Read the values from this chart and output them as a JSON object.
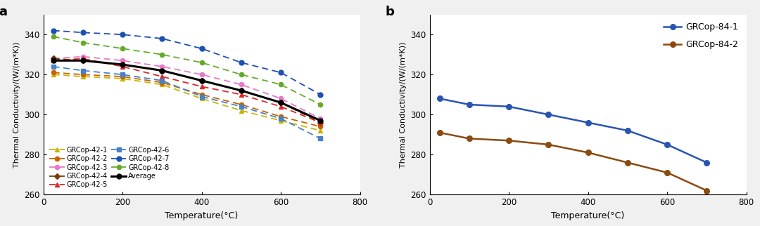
{
  "temp_a": [
    25,
    100,
    200,
    300,
    400,
    500,
    600,
    700
  ],
  "GRCop42_1": [
    320,
    319,
    318,
    315,
    308,
    302,
    297,
    292
  ],
  "GRCop42_2": [
    321,
    320,
    319,
    316,
    310,
    305,
    299,
    294
  ],
  "GRCop42_3": [
    328,
    329,
    327,
    324,
    320,
    315,
    308,
    298
  ],
  "GRCop42_4": [
    328,
    327,
    325,
    322,
    317,
    312,
    306,
    296
  ],
  "GRCop42_5": [
    327,
    328,
    324,
    319,
    314,
    310,
    304,
    296
  ],
  "GRCop42_6": [
    324,
    322,
    320,
    317,
    309,
    304,
    298,
    288
  ],
  "GRCop42_7": [
    342,
    341,
    340,
    338,
    333,
    326,
    321,
    310
  ],
  "GRCop42_8": [
    339,
    336,
    333,
    330,
    326,
    320,
    315,
    305
  ],
  "Average": [
    327,
    327,
    325,
    322,
    317,
    312,
    306,
    297
  ],
  "temp_b": [
    25,
    100,
    200,
    300,
    400,
    500,
    600,
    700
  ],
  "GRCop84_1": [
    308,
    305,
    304,
    300,
    296,
    292,
    285,
    276
  ],
  "GRCop84_2": [
    291,
    288,
    287,
    285,
    281,
    276,
    271,
    262
  ],
  "color_1": "#c8b400",
  "color_2": "#c86400",
  "color_3": "#e878c8",
  "color_4": "#7a3c0a",
  "color_5": "#dc2828",
  "color_6": "#4682c8",
  "color_7": "#1e50b4",
  "color_8": "#64aa28",
  "color_avg": "#000000",
  "color_84_1": "#2855b0",
  "color_84_2": "#8b4a10",
  "ylabel": "Thermal Conductivity/(W/(m*K))",
  "xlabel": "Temperature(°C)",
  "ylim_a": [
    260,
    350
  ],
  "ylim_b": [
    260,
    350
  ],
  "xlim": [
    0,
    800
  ],
  "fig_bg": "#f0f0f0"
}
